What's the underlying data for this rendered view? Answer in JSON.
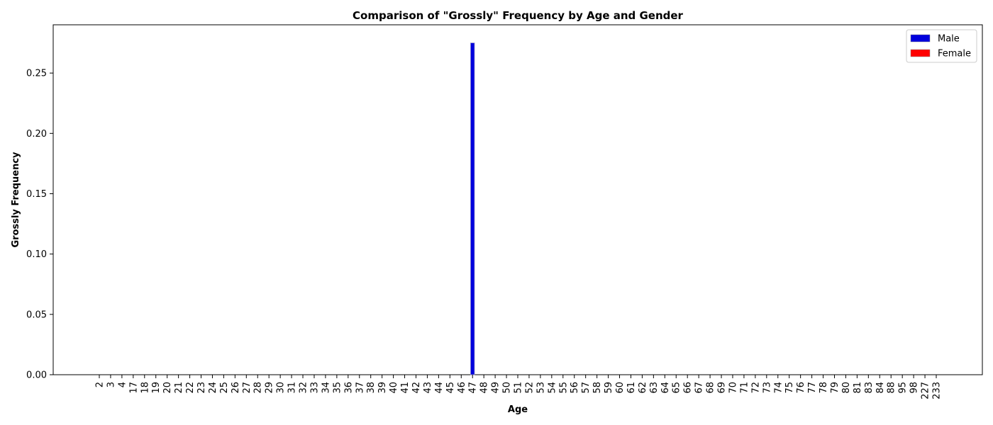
{
  "chart_data": {
    "type": "bar",
    "title": "Comparison of \"Grossly\" Frequency by Age and Gender",
    "xlabel": "Age",
    "ylabel": "Grossly Frequency",
    "ylim": [
      0,
      0.29
    ],
    "yticks": [
      "0.00",
      "0.05",
      "0.10",
      "0.15",
      "0.20",
      "0.25"
    ],
    "ytick_values": [
      0,
      0.05,
      0.1,
      0.15,
      0.2,
      0.25
    ],
    "grid": false,
    "legend_position": "top-right",
    "categories": [
      "2",
      "3",
      "4",
      "17",
      "18",
      "19",
      "20",
      "21",
      "22",
      "23",
      "24",
      "25",
      "26",
      "27",
      "28",
      "29",
      "30",
      "31",
      "32",
      "33",
      "34",
      "35",
      "36",
      "37",
      "38",
      "39",
      "40",
      "41",
      "42",
      "43",
      "44",
      "45",
      "46",
      "47",
      "48",
      "49",
      "50",
      "51",
      "52",
      "53",
      "54",
      "55",
      "56",
      "57",
      "58",
      "59",
      "60",
      "61",
      "62",
      "63",
      "64",
      "65",
      "66",
      "67",
      "68",
      "69",
      "70",
      "71",
      "72",
      "73",
      "74",
      "75",
      "76",
      "77",
      "78",
      "79",
      "80",
      "81",
      "83",
      "84",
      "88",
      "95",
      "98",
      "227",
      "233"
    ],
    "series": [
      {
        "name": "Male",
        "color": "#0000dd",
        "values": [
          0,
          0,
          0,
          0,
          0,
          0,
          0,
          0,
          0,
          0,
          0,
          0,
          0,
          0,
          0,
          0,
          0,
          0,
          0,
          0,
          0,
          0,
          0,
          0,
          0,
          0,
          0,
          0,
          0,
          0,
          0,
          0,
          0,
          0.275,
          0,
          0,
          0,
          0,
          0,
          0,
          0,
          0,
          0,
          0,
          0,
          0,
          0,
          0,
          0,
          0,
          0,
          0,
          0,
          0,
          0,
          0,
          0,
          0,
          0,
          0,
          0,
          0,
          0,
          0,
          0,
          0,
          0,
          0,
          0,
          0,
          0,
          0,
          0,
          0,
          0
        ]
      },
      {
        "name": "Female",
        "color": "#ff0000",
        "values": [
          0,
          0,
          0,
          0,
          0,
          0,
          0,
          0,
          0,
          0,
          0,
          0,
          0,
          0,
          0,
          0,
          0,
          0,
          0,
          0,
          0,
          0,
          0,
          0,
          0,
          0,
          0,
          0,
          0,
          0,
          0,
          0,
          0,
          0,
          0,
          0,
          0,
          0,
          0,
          0,
          0,
          0,
          0,
          0,
          0,
          0,
          0,
          0,
          0,
          0,
          0,
          0,
          0,
          0,
          0,
          0,
          0,
          0,
          0,
          0,
          0,
          0,
          0,
          0,
          0,
          0,
          0,
          0,
          0,
          0,
          0,
          0,
          0,
          0,
          0
        ]
      }
    ]
  }
}
